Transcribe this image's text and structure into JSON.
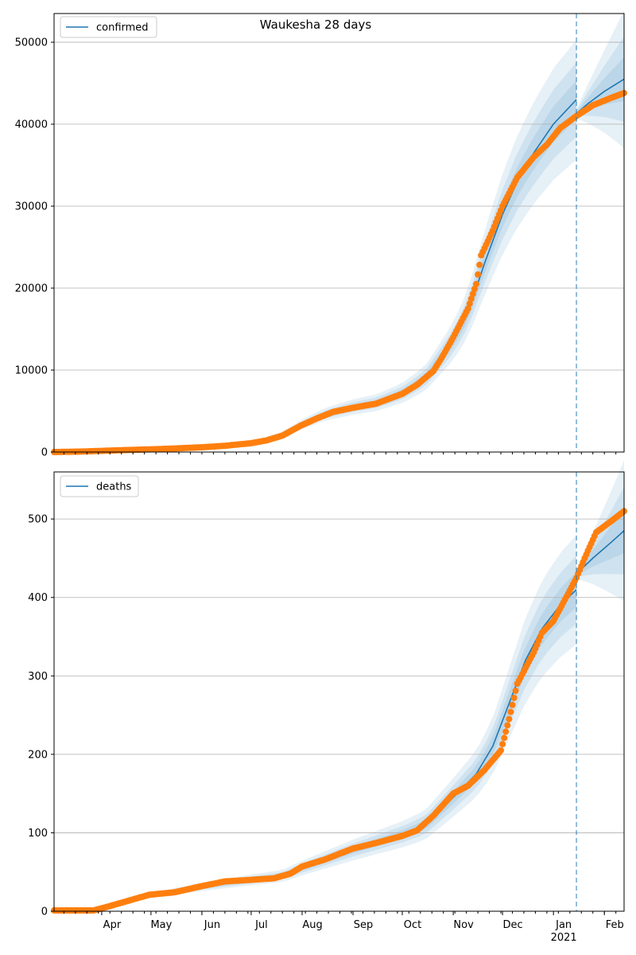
{
  "title": "Waukesha 28 days",
  "chart_data": [
    {
      "type": "line",
      "legend": "confirmed",
      "legend_position": "top-left",
      "grid": "horizontal",
      "xlim": [
        "2020-03-03",
        "2021-02-13"
      ],
      "ylim": [
        0,
        53500
      ],
      "yticks": [
        0,
        10000,
        20000,
        30000,
        40000,
        50000
      ],
      "ytick_labels": [
        "0",
        "10000",
        "20000",
        "30000",
        "40000",
        "50000"
      ],
      "forecast_start": "2021-01-15",
      "observed": [
        [
          "2020-03-03",
          0
        ],
        [
          "2020-03-20",
          60
        ],
        [
          "2020-04-01",
          140
        ],
        [
          "2020-04-15",
          240
        ],
        [
          "2020-05-01",
          330
        ],
        [
          "2020-05-15",
          430
        ],
        [
          "2020-06-01",
          580
        ],
        [
          "2020-06-15",
          760
        ],
        [
          "2020-07-01",
          1080
        ],
        [
          "2020-07-10",
          1400
        ],
        [
          "2020-07-20",
          2000
        ],
        [
          "2020-07-31",
          3200
        ],
        [
          "2020-08-10",
          4100
        ],
        [
          "2020-08-20",
          4900
        ],
        [
          "2020-09-01",
          5400
        ],
        [
          "2020-09-15",
          5900
        ],
        [
          "2020-10-01",
          7100
        ],
        [
          "2020-10-10",
          8200
        ],
        [
          "2020-10-20",
          9900
        ],
        [
          "2020-10-25",
          11500
        ],
        [
          "2020-11-01",
          14000
        ],
        [
          "2020-11-10",
          17500
        ],
        [
          "2020-11-15",
          20500
        ],
        [
          "2020-11-18",
          24000
        ],
        [
          "2020-11-25",
          27000
        ],
        [
          "2020-12-01",
          30000
        ],
        [
          "2020-12-10",
          33500
        ],
        [
          "2020-12-20",
          36000
        ],
        [
          "2020-12-28",
          37500
        ],
        [
          "2021-01-05",
          39500
        ],
        [
          "2021-01-15",
          41000
        ],
        [
          "2021-01-25",
          42300
        ],
        [
          "2021-02-05",
          43200
        ],
        [
          "2021-02-13",
          43800
        ]
      ],
      "fit": [
        [
          "2020-03-03",
          0
        ],
        [
          "2020-04-01",
          150
        ],
        [
          "2020-05-01",
          350
        ],
        [
          "2020-06-01",
          600
        ],
        [
          "2020-07-01",
          1100
        ],
        [
          "2020-07-20",
          2100
        ],
        [
          "2020-08-01",
          3400
        ],
        [
          "2020-08-15",
          4600
        ],
        [
          "2020-09-01",
          5500
        ],
        [
          "2020-09-15",
          6000
        ],
        [
          "2020-10-01",
          7200
        ],
        [
          "2020-10-15",
          9000
        ],
        [
          "2020-11-01",
          13500
        ],
        [
          "2020-11-10",
          17000
        ],
        [
          "2020-11-20",
          23000
        ],
        [
          "2020-12-01",
          29000
        ],
        [
          "2020-12-10",
          33000
        ],
        [
          "2020-12-20",
          36500
        ],
        [
          "2021-01-01",
          40000
        ],
        [
          "2021-01-15",
          43000
        ]
      ],
      "forecast": [
        [
          "2021-01-15",
          41300
        ],
        [
          "2021-01-22",
          42500
        ],
        [
          "2021-02-01",
          44000
        ],
        [
          "2021-02-13",
          45500
        ]
      ]
    },
    {
      "type": "line",
      "legend": "deaths",
      "legend_position": "top-left",
      "grid": "horizontal",
      "xlim": [
        "2020-03-03",
        "2021-02-13"
      ],
      "ylim": [
        0,
        560
      ],
      "yticks": [
        0,
        100,
        200,
        300,
        400,
        500
      ],
      "ytick_labels": [
        "0",
        "100",
        "200",
        "300",
        "400",
        "500"
      ],
      "xticks": [
        "2020-04-01",
        "2020-05-01",
        "2020-06-01",
        "2020-07-01",
        "2020-08-01",
        "2020-09-01",
        "2020-10-01",
        "2020-11-01",
        "2020-12-01",
        "2021-01-01",
        "2021-02-01"
      ],
      "xtick_labels": [
        "Apr",
        "May",
        "Jun",
        "Jul",
        "Aug",
        "Sep",
        "Oct",
        "Nov",
        "Dec",
        "Jan",
        "Feb"
      ],
      "xtick_year_label": "2021",
      "forecast_start": "2021-01-15",
      "observed": [
        [
          "2020-03-03",
          1
        ],
        [
          "2020-03-27",
          1
        ],
        [
          "2020-04-05",
          6
        ],
        [
          "2020-04-15",
          12
        ],
        [
          "2020-04-30",
          21
        ],
        [
          "2020-05-15",
          24
        ],
        [
          "2020-06-01",
          32
        ],
        [
          "2020-06-15",
          38
        ],
        [
          "2020-07-01",
          40
        ],
        [
          "2020-07-15",
          42
        ],
        [
          "2020-07-25",
          48
        ],
        [
          "2020-08-01",
          57
        ],
        [
          "2020-08-15",
          66
        ],
        [
          "2020-09-01",
          80
        ],
        [
          "2020-09-15",
          87
        ],
        [
          "2020-10-01",
          96
        ],
        [
          "2020-10-10",
          103
        ],
        [
          "2020-10-20",
          122
        ],
        [
          "2020-11-01",
          150
        ],
        [
          "2020-11-10",
          160
        ],
        [
          "2020-11-20",
          180
        ],
        [
          "2020-11-30",
          205
        ],
        [
          "2020-12-05",
          245
        ],
        [
          "2020-12-10",
          290
        ],
        [
          "2020-12-15",
          310
        ],
        [
          "2020-12-20",
          330
        ],
        [
          "2020-12-25",
          355
        ],
        [
          "2021-01-01",
          370
        ],
        [
          "2021-01-10",
          405
        ],
        [
          "2021-01-15",
          425
        ],
        [
          "2021-01-20",
          450
        ],
        [
          "2021-01-27",
          483
        ],
        [
          "2021-02-05",
          497
        ],
        [
          "2021-02-13",
          510
        ]
      ],
      "fit": [
        [
          "2020-03-03",
          0
        ],
        [
          "2020-04-01",
          4
        ],
        [
          "2020-05-01",
          20
        ],
        [
          "2020-06-01",
          31
        ],
        [
          "2020-07-01",
          40
        ],
        [
          "2020-07-20",
          45
        ],
        [
          "2020-08-01",
          55
        ],
        [
          "2020-09-01",
          78
        ],
        [
          "2020-10-01",
          98
        ],
        [
          "2020-10-15",
          110
        ],
        [
          "2020-11-01",
          145
        ],
        [
          "2020-11-15",
          175
        ],
        [
          "2020-11-25",
          210
        ],
        [
          "2020-12-05",
          265
        ],
        [
          "2020-12-15",
          320
        ],
        [
          "2020-12-25",
          360
        ],
        [
          "2021-01-05",
          390
        ],
        [
          "2021-01-15",
          410
        ]
      ],
      "forecast": [
        [
          "2021-01-15",
          430
        ],
        [
          "2021-01-25",
          450
        ],
        [
          "2021-02-05",
          470
        ],
        [
          "2021-02-13",
          485
        ]
      ]
    }
  ]
}
